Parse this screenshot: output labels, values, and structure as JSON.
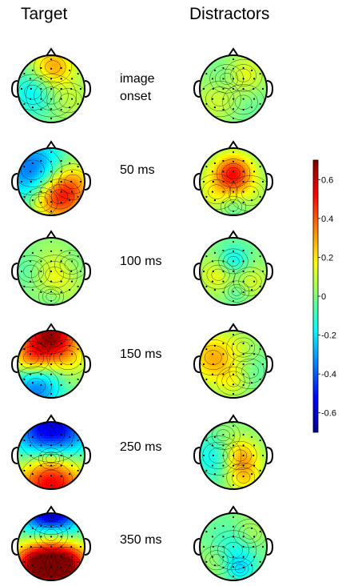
{
  "columns": {
    "target": "Target",
    "distractors": "Distractors"
  },
  "rows": [
    {
      "label": [
        "image",
        "onset"
      ]
    },
    {
      "label": [
        "50 ms"
      ]
    },
    {
      "label": [
        "100 ms"
      ]
    },
    {
      "label": [
        "150 ms"
      ]
    },
    {
      "label": [
        "250 ms"
      ]
    },
    {
      "label": [
        "350 ms"
      ]
    }
  ],
  "colorbar": {
    "min": -0.7,
    "max": 0.7,
    "ticks": [
      {
        "value": 0.6,
        "label": "0.6"
      },
      {
        "value": 0.4,
        "label": "0.4"
      },
      {
        "value": 0.2,
        "label": "0.2"
      },
      {
        "value": 0,
        "label": "0"
      },
      {
        "value": -0.2,
        "label": "-0.2"
      },
      {
        "value": -0.4,
        "label": "-0.4"
      },
      {
        "value": -0.6,
        "label": "-0.6"
      }
    ],
    "colors": [
      "#00008f",
      "#0000ff",
      "#0080ff",
      "#00ffff",
      "#80ff80",
      "#ffff00",
      "#ff8000",
      "#ff0000",
      "#800000"
    ]
  }
}
